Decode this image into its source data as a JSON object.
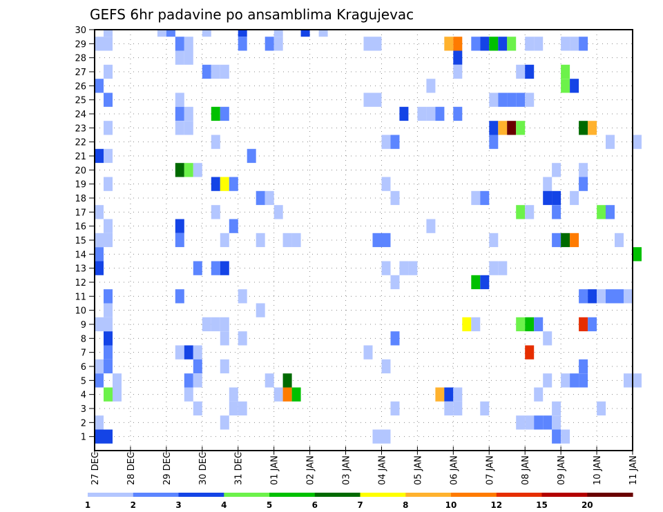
{
  "chart_data": {
    "type": "heatmap",
    "title": "GEFS 6hr padavine po ansamblima Kragujevac",
    "xlabel": "",
    "ylabel": "",
    "x_ticks": [
      "27 DEC",
      "28 DEC",
      "29 DEC",
      "30 DEC",
      "31 DEC",
      "01 JAN",
      "02 JAN",
      "03 JAN",
      "04 JAN",
      "05 JAN",
      "06 JAN",
      "07 JAN",
      "08 JAN",
      "09 JAN",
      "10 JAN",
      "11 JAN"
    ],
    "y_ticks": [
      1,
      2,
      3,
      4,
      5,
      6,
      7,
      8,
      9,
      10,
      11,
      12,
      13,
      14,
      15,
      16,
      17,
      18,
      19,
      20,
      21,
      22,
      23,
      24,
      25,
      26,
      27,
      28,
      29,
      30
    ],
    "y_range": [
      0,
      30
    ],
    "x_range_days": [
      0,
      15
    ],
    "time_step_hours": 6,
    "grid": true,
    "colorbar": {
      "placement": "bottom",
      "levels": [
        1,
        2,
        3,
        4,
        5,
        6,
        7,
        8,
        10,
        12,
        15,
        20
      ],
      "labels": [
        "1",
        "2",
        "3",
        "4",
        "5",
        "6",
        "7",
        "8",
        "10",
        "12",
        "15",
        "20"
      ],
      "colors": [
        "#b3c6ff",
        "#5c85ff",
        "#1444e6",
        "#6cf24a",
        "#00c000",
        "#006a00",
        "#ffff00",
        "#ffb22e",
        "#ff7b00",
        "#e62e00",
        "#b30000",
        "#6a0000"
      ]
    },
    "cells_note": "each cell = [member, step] where step is 6-hourly index from 27 DEC 00Z, value class index into colorbar.colors",
    "cells": [
      [
        30,
        1,
        0
      ],
      [
        30,
        7,
        0
      ],
      [
        30,
        8,
        1
      ],
      [
        30,
        12,
        0
      ],
      [
        30,
        16,
        2
      ],
      [
        30,
        20,
        0
      ],
      [
        30,
        23,
        2
      ],
      [
        30,
        25,
        0
      ],
      [
        29,
        0,
        0
      ],
      [
        29,
        1,
        0
      ],
      [
        29,
        9,
        1
      ],
      [
        29,
        10,
        0
      ],
      [
        29,
        16,
        1
      ],
      [
        29,
        19,
        1
      ],
      [
        29,
        20,
        0
      ],
      [
        29,
        30,
        0
      ],
      [
        29,
        31,
        0
      ],
      [
        29,
        39,
        7
      ],
      [
        29,
        40,
        8
      ],
      [
        29,
        42,
        1
      ],
      [
        29,
        43,
        2
      ],
      [
        29,
        44,
        4
      ],
      [
        29,
        45,
        2
      ],
      [
        29,
        46,
        3
      ],
      [
        29,
        48,
        0
      ],
      [
        29,
        49,
        0
      ],
      [
        29,
        52,
        0
      ],
      [
        29,
        53,
        0
      ],
      [
        29,
        54,
        1
      ],
      [
        28,
        9,
        0
      ],
      [
        28,
        10,
        0
      ],
      [
        28,
        40,
        2
      ],
      [
        27,
        1,
        0
      ],
      [
        27,
        12,
        1
      ],
      [
        27,
        13,
        0
      ],
      [
        27,
        14,
        0
      ],
      [
        27,
        40,
        0
      ],
      [
        27,
        47,
        0
      ],
      [
        27,
        48,
        2
      ],
      [
        27,
        52,
        3
      ],
      [
        26,
        0,
        1
      ],
      [
        26,
        37,
        0
      ],
      [
        26,
        52,
        3
      ],
      [
        26,
        53,
        2
      ],
      [
        25,
        1,
        1
      ],
      [
        25,
        9,
        0
      ],
      [
        25,
        30,
        0
      ],
      [
        25,
        31,
        0
      ],
      [
        25,
        44,
        0
      ],
      [
        25,
        45,
        1
      ],
      [
        25,
        46,
        1
      ],
      [
        25,
        47,
        1
      ],
      [
        25,
        48,
        0
      ],
      [
        24,
        9,
        1
      ],
      [
        24,
        10,
        0
      ],
      [
        24,
        13,
        4
      ],
      [
        24,
        14,
        1
      ],
      [
        24,
        34,
        2
      ],
      [
        24,
        36,
        0
      ],
      [
        24,
        37,
        0
      ],
      [
        24,
        38,
        1
      ],
      [
        24,
        40,
        1
      ],
      [
        23,
        1,
        0
      ],
      [
        23,
        9,
        0
      ],
      [
        23,
        10,
        0
      ],
      [
        23,
        44,
        2
      ],
      [
        23,
        45,
        7
      ],
      [
        23,
        46,
        11
      ],
      [
        23,
        47,
        3
      ],
      [
        23,
        54,
        5
      ],
      [
        23,
        55,
        7
      ],
      [
        22,
        13,
        0
      ],
      [
        22,
        32,
        0
      ],
      [
        22,
        33,
        1
      ],
      [
        22,
        44,
        1
      ],
      [
        22,
        57,
        0
      ],
      [
        22,
        60,
        0
      ],
      [
        21,
        0,
        2
      ],
      [
        21,
        1,
        0
      ],
      [
        21,
        17,
        1
      ],
      [
        20,
        9,
        5
      ],
      [
        20,
        10,
        3
      ],
      [
        20,
        11,
        0
      ],
      [
        20,
        51,
        0
      ],
      [
        20,
        54,
        0
      ],
      [
        19,
        1,
        0
      ],
      [
        19,
        13,
        2
      ],
      [
        19,
        14,
        6
      ],
      [
        19,
        15,
        1
      ],
      [
        19,
        32,
        0
      ],
      [
        19,
        50,
        0
      ],
      [
        19,
        54,
        1
      ],
      [
        18,
        18,
        1
      ],
      [
        18,
        19,
        0
      ],
      [
        18,
        33,
        0
      ],
      [
        18,
        42,
        0
      ],
      [
        18,
        43,
        1
      ],
      [
        18,
        50,
        2
      ],
      [
        18,
        51,
        2
      ],
      [
        18,
        53,
        0
      ],
      [
        17,
        0,
        0
      ],
      [
        17,
        13,
        0
      ],
      [
        17,
        20,
        0
      ],
      [
        17,
        47,
        3
      ],
      [
        17,
        48,
        0
      ],
      [
        17,
        51,
        1
      ],
      [
        17,
        56,
        3
      ],
      [
        17,
        57,
        1
      ],
      [
        16,
        1,
        0
      ],
      [
        16,
        9,
        2
      ],
      [
        16,
        15,
        1
      ],
      [
        16,
        37,
        0
      ],
      [
        15,
        0,
        0
      ],
      [
        15,
        1,
        0
      ],
      [
        15,
        9,
        1
      ],
      [
        15,
        14,
        0
      ],
      [
        15,
        18,
        0
      ],
      [
        15,
        21,
        0
      ],
      [
        15,
        22,
        0
      ],
      [
        15,
        31,
        1
      ],
      [
        15,
        32,
        1
      ],
      [
        15,
        44,
        0
      ],
      [
        15,
        51,
        1
      ],
      [
        15,
        52,
        5
      ],
      [
        15,
        53,
        8
      ],
      [
        15,
        58,
        0
      ],
      [
        14,
        0,
        1
      ],
      [
        14,
        60,
        4
      ],
      [
        13,
        0,
        2
      ],
      [
        13,
        11,
        1
      ],
      [
        13,
        13,
        1
      ],
      [
        13,
        14,
        2
      ],
      [
        13,
        32,
        0
      ],
      [
        13,
        34,
        0
      ],
      [
        13,
        35,
        0
      ],
      [
        13,
        44,
        0
      ],
      [
        13,
        45,
        0
      ],
      [
        12,
        33,
        0
      ],
      [
        12,
        42,
        4
      ],
      [
        12,
        43,
        2
      ],
      [
        11,
        1,
        1
      ],
      [
        11,
        9,
        1
      ],
      [
        11,
        16,
        0
      ],
      [
        11,
        54,
        1
      ],
      [
        11,
        55,
        2
      ],
      [
        11,
        56,
        0
      ],
      [
        11,
        57,
        1
      ],
      [
        11,
        58,
        1
      ],
      [
        11,
        59,
        0
      ],
      [
        10,
        1,
        0
      ],
      [
        10,
        18,
        0
      ],
      [
        9,
        0,
        0
      ],
      [
        9,
        1,
        0
      ],
      [
        9,
        12,
        0
      ],
      [
        9,
        13,
        0
      ],
      [
        9,
        14,
        0
      ],
      [
        9,
        41,
        6
      ],
      [
        9,
        42,
        0
      ],
      [
        9,
        47,
        3
      ],
      [
        9,
        48,
        4
      ],
      [
        9,
        49,
        1
      ],
      [
        9,
        54,
        9
      ],
      [
        9,
        55,
        1
      ],
      [
        8,
        1,
        2
      ],
      [
        8,
        14,
        0
      ],
      [
        8,
        16,
        0
      ],
      [
        8,
        33,
        1
      ],
      [
        8,
        50,
        0
      ],
      [
        7,
        1,
        1
      ],
      [
        7,
        9,
        0
      ],
      [
        7,
        10,
        2
      ],
      [
        7,
        11,
        0
      ],
      [
        7,
        30,
        0
      ],
      [
        7,
        48,
        9
      ],
      [
        6,
        0,
        0
      ],
      [
        6,
        1,
        1
      ],
      [
        6,
        11,
        1
      ],
      [
        6,
        14,
        0
      ],
      [
        6,
        32,
        0
      ],
      [
        6,
        54,
        1
      ],
      [
        5,
        0,
        1
      ],
      [
        5,
        2,
        0
      ],
      [
        5,
        10,
        1
      ],
      [
        5,
        11,
        0
      ],
      [
        5,
        19,
        0
      ],
      [
        5,
        21,
        5
      ],
      [
        5,
        50,
        0
      ],
      [
        5,
        52,
        0
      ],
      [
        5,
        53,
        1
      ],
      [
        5,
        54,
        1
      ],
      [
        5,
        59,
        0
      ],
      [
        5,
        60,
        0
      ],
      [
        4,
        1,
        3
      ],
      [
        4,
        2,
        0
      ],
      [
        4,
        10,
        0
      ],
      [
        4,
        15,
        0
      ],
      [
        4,
        20,
        0
      ],
      [
        4,
        21,
        8
      ],
      [
        4,
        22,
        4
      ],
      [
        4,
        38,
        7
      ],
      [
        4,
        39,
        2
      ],
      [
        4,
        40,
        0
      ],
      [
        4,
        49,
        0
      ],
      [
        3,
        11,
        0
      ],
      [
        3,
        15,
        0
      ],
      [
        3,
        16,
        0
      ],
      [
        3,
        33,
        0
      ],
      [
        3,
        39,
        0
      ],
      [
        3,
        40,
        0
      ],
      [
        3,
        43,
        0
      ],
      [
        3,
        51,
        0
      ],
      [
        3,
        56,
        0
      ],
      [
        2,
        0,
        0
      ],
      [
        2,
        14,
        0
      ],
      [
        2,
        47,
        0
      ],
      [
        2,
        48,
        0
      ],
      [
        2,
        49,
        1
      ],
      [
        2,
        50,
        1
      ],
      [
        2,
        51,
        0
      ],
      [
        1,
        0,
        2
      ],
      [
        1,
        1,
        2
      ],
      [
        1,
        31,
        0
      ],
      [
        1,
        32,
        0
      ],
      [
        1,
        51,
        1
      ],
      [
        1,
        52,
        0
      ]
    ]
  }
}
